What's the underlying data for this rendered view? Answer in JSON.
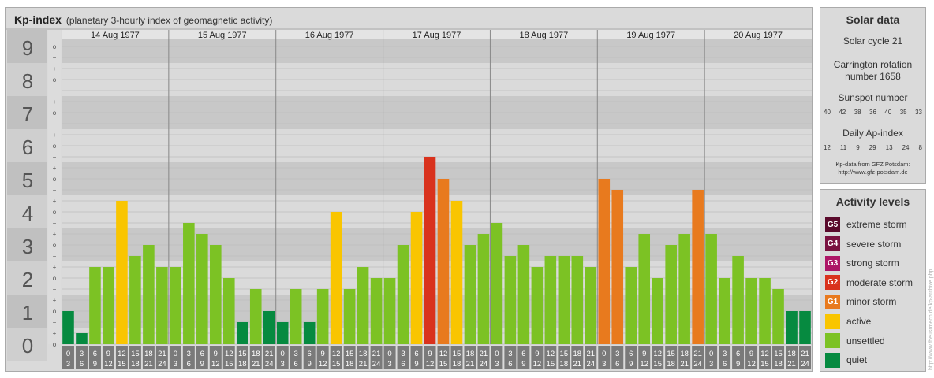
{
  "chart_data": {
    "type": "bar",
    "title": "Kp-index",
    "subtitle": "(planetary 3-hourly index of geomagnetic activity)",
    "ylim": [
      0,
      9
    ],
    "y_ticks": [
      "0",
      "1",
      "2",
      "3",
      "4",
      "5",
      "6",
      "7",
      "8",
      "9"
    ],
    "minor_ticks": [
      "o",
      "+",
      "−"
    ],
    "days": [
      "14 Aug 1977",
      "15 Aug 1977",
      "16 Aug 1977",
      "17 Aug 1977",
      "18 Aug 1977",
      "19 Aug 1977",
      "20 Aug 1977"
    ],
    "interval_start_labels": [
      "0",
      "3",
      "6",
      "9",
      "12",
      "15",
      "18",
      "21"
    ],
    "interval_end_labels": [
      "3",
      "6",
      "9",
      "12",
      "15",
      "18",
      "21",
      "24"
    ],
    "values": [
      1.0,
      0.333,
      2.333,
      2.333,
      4.333,
      2.667,
      3.0,
      2.333,
      2.333,
      3.667,
      3.333,
      3.0,
      2.0,
      0.667,
      1.667,
      1.0,
      0.667,
      1.667,
      0.667,
      1.667,
      4.0,
      1.667,
      2.333,
      2.0,
      2.0,
      3.0,
      4.0,
      5.667,
      5.0,
      4.333,
      3.0,
      3.333,
      3.667,
      2.667,
      3.0,
      2.333,
      2.667,
      2.667,
      2.667,
      2.333,
      5.0,
      4.667,
      2.333,
      3.333,
      2.0,
      3.0,
      3.333,
      4.667,
      3.333,
      2.0,
      2.667,
      2.0,
      2.0,
      1.667,
      1.0,
      1.0
    ],
    "colors": {
      "quiet": "#068a40",
      "unsettled": "#7cc224",
      "active": "#f9c500",
      "minor": "#e87a1e",
      "moderate": "#d9321d",
      "background": "#dadada",
      "band": "#c8c8c8",
      "cell": "#7a7a7a"
    }
  },
  "solar_data": {
    "title": "Solar data",
    "cycle": "Solar cycle 21",
    "carrington_line1": "Carrington rotation",
    "carrington_line2": "number 1658",
    "sunspot_label": "Sunspot number",
    "sunspot_values": [
      "40",
      "42",
      "38",
      "36",
      "40",
      "35",
      "33"
    ],
    "ap_label": "Daily Ap-index",
    "ap_values": [
      "12",
      "11",
      "9",
      "29",
      "13",
      "24",
      "8"
    ],
    "source_line1": "Kp-data from GFZ Potsdam:",
    "source_line2": "http://www.gfz-potsdam.de"
  },
  "activity_levels": {
    "title": "Activity levels",
    "items": [
      {
        "code": "G5",
        "label": "extreme storm",
        "color": "#5a0a2c"
      },
      {
        "code": "G4",
        "label": "severe storm",
        "color": "#7a1240"
      },
      {
        "code": "G3",
        "label": "strong storm",
        "color": "#ad1566"
      },
      {
        "code": "G2",
        "label": "moderate storm",
        "color": "#d9321d"
      },
      {
        "code": "G1",
        "label": "minor storm",
        "color": "#e87a1e"
      },
      {
        "code": "",
        "label": "active",
        "color": "#f9c500"
      },
      {
        "code": "",
        "label": "unsettled",
        "color": "#7cc224"
      },
      {
        "code": "",
        "label": "quiet",
        "color": "#068a40"
      }
    ]
  },
  "watermark": "http://www.theusrmech.de/kp-archive.php"
}
